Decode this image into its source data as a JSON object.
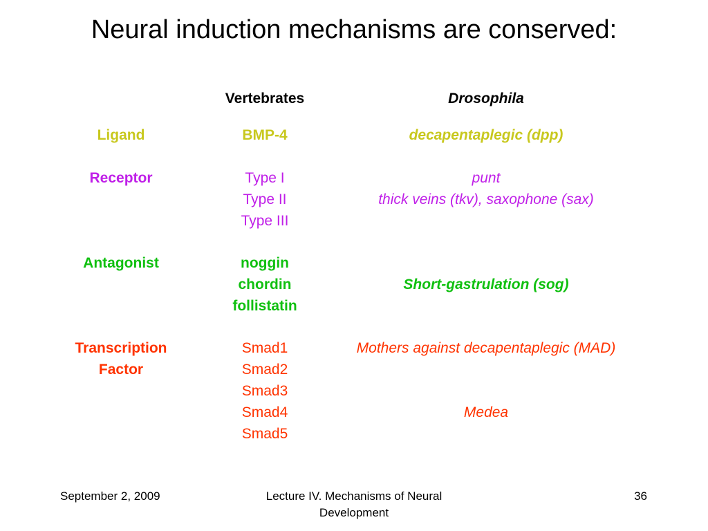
{
  "title": "Neural induction mechanisms are conserved:",
  "colors": {
    "ligand": "#c8c81e",
    "receptor": "#c020e8",
    "antagonist": "#10c010",
    "transcription": "#ff3300",
    "text": "#000000"
  },
  "headers": {
    "vertebrates": "Vertebrates",
    "drosophila": "Drosophila"
  },
  "ligand": {
    "label": "Ligand",
    "vertebrate": "BMP-4",
    "drosophila": "decapentaplegic (dpp)"
  },
  "receptor": {
    "label": "Receptor",
    "vertebrate": [
      "Type I",
      "Type II",
      "Type III"
    ],
    "drosophila": [
      "punt",
      "thick veins (tkv), saxophone (sax)"
    ]
  },
  "antagonist": {
    "label": "Antagonist",
    "vertebrate": [
      "noggin",
      "chordin",
      "follistatin"
    ],
    "drosophila": "Short-gastrulation (sog)"
  },
  "transcription": {
    "label": [
      "Transcription",
      "Factor"
    ],
    "vertebrate": [
      "Smad1",
      "Smad2",
      "Smad3",
      "Smad4",
      "Smad5"
    ],
    "drosophila": [
      "Mothers against decapentaplegic (MAD)",
      "Medea"
    ]
  },
  "footer": {
    "date": "September 2, 2009",
    "lecture": [
      "Lecture IV. Mechanisms of Neural",
      "Development"
    ],
    "page": "36"
  }
}
